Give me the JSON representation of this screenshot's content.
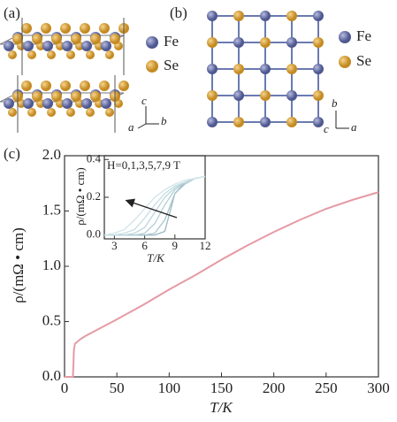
{
  "panels": {
    "a": {
      "label": "(a)",
      "legend": [
        "Fe",
        "Se"
      ],
      "axes": [
        "c",
        "a",
        "b"
      ]
    },
    "b": {
      "label": "(b)",
      "legend": [
        "Fe",
        "Se"
      ],
      "axes": [
        "b",
        "c",
        "a"
      ]
    },
    "c": {
      "label": "(c)"
    }
  },
  "chart_data": [
    {
      "type": "line",
      "xlabel": "T/K",
      "ylabel": "ρ/(mΩ • cm)",
      "x": [
        0,
        5,
        8,
        8.5,
        9,
        10,
        15,
        20,
        30,
        40,
        50,
        75,
        100,
        125,
        150,
        175,
        200,
        225,
        250,
        275,
        300
      ],
      "series": [
        {
          "color": "#e59aa4",
          "values": [
            0,
            0,
            0,
            0.12,
            0.25,
            0.3,
            0.34,
            0.37,
            0.42,
            0.47,
            0.52,
            0.65,
            0.79,
            0.92,
            1.06,
            1.19,
            1.31,
            1.42,
            1.52,
            1.6,
            1.67
          ]
        }
      ],
      "xlim": [
        0,
        300
      ],
      "xticks": [
        0,
        50,
        100,
        150,
        200,
        250,
        300
      ],
      "ylim": [
        0,
        2
      ],
      "yticks": [
        {
          "value": 0,
          "label": "0.0"
        },
        {
          "value": 0.5,
          "label": "0.5"
        },
        {
          "value": 1,
          "label": "1.0"
        },
        {
          "value": 1.5,
          "label": "1.5"
        },
        {
          "value": 2,
          "label": "2.0"
        }
      ]
    },
    {
      "type": "line",
      "annotation": "H=0,1,3,5,7,9 T",
      "xlabel": "T/K",
      "ylabel": "ρ/(mΩ • cm)",
      "x": [
        2,
        3,
        4,
        5,
        6,
        7,
        8,
        9,
        10,
        11,
        12
      ],
      "series": [
        {
          "color": "#9bb8c4",
          "values": [
            0,
            0,
            0,
            0,
            0,
            0,
            0.02,
            0.22,
            0.28,
            0.3,
            0.31
          ]
        },
        {
          "color": "#a9c6cf",
          "values": [
            0,
            0,
            0,
            0,
            0,
            0.01,
            0.08,
            0.22,
            0.27,
            0.3,
            0.31
          ]
        },
        {
          "color": "#b3cfd6",
          "values": [
            0,
            0,
            0,
            0,
            0.01,
            0.06,
            0.16,
            0.24,
            0.28,
            0.3,
            0.31
          ]
        },
        {
          "color": "#bcd6dc",
          "values": [
            0,
            0,
            0,
            0.01,
            0.04,
            0.12,
            0.2,
            0.25,
            0.28,
            0.3,
            0.31
          ]
        },
        {
          "color": "#c6dde2",
          "values": [
            0,
            0,
            0.01,
            0.03,
            0.09,
            0.16,
            0.22,
            0.26,
            0.28,
            0.3,
            0.31
          ]
        },
        {
          "color": "#d0e4e8",
          "values": [
            0,
            0.01,
            0.03,
            0.08,
            0.14,
            0.2,
            0.24,
            0.27,
            0.29,
            0.3,
            0.31
          ]
        }
      ],
      "xlim": [
        2,
        12
      ],
      "xticks": [
        3,
        6,
        9,
        12
      ],
      "ylim": [
        -0.02,
        0.42
      ],
      "yticks": [
        {
          "value": 0,
          "label": "0.0"
        },
        {
          "value": 0.2,
          "label": "0.2"
        },
        {
          "value": 0.4,
          "label": "0.4"
        }
      ]
    }
  ]
}
